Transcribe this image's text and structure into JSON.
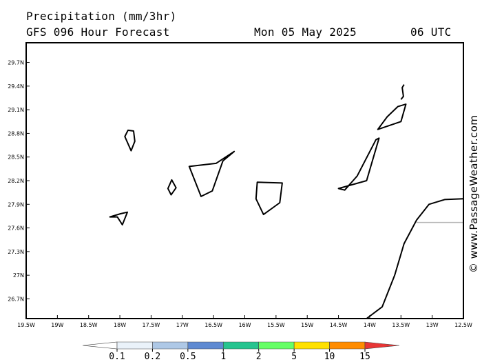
{
  "header": {
    "title": "Precipitation (mm/3hr)",
    "model": "GFS 096 Hour Forecast",
    "date": "Mon 05 May 2025",
    "time": "06 UTC"
  },
  "watermark": "© www.PassageWeather.com",
  "map": {
    "lon_range": [
      -19.5,
      -12.5
    ],
    "lat_range": [
      26.45,
      29.95
    ],
    "lat_ticks": [
      {
        "value": 29.7,
        "label": "29.7N"
      },
      {
        "value": 29.4,
        "label": "29.4N"
      },
      {
        "value": 29.1,
        "label": "29.1N"
      },
      {
        "value": 28.8,
        "label": "28.8N"
      },
      {
        "value": 28.5,
        "label": "28.5N"
      },
      {
        "value": 28.2,
        "label": "28.2N"
      },
      {
        "value": 27.9,
        "label": "27.9N"
      },
      {
        "value": 27.6,
        "label": "27.6N"
      },
      {
        "value": 27.3,
        "label": "27.3N"
      },
      {
        "value": 27.0,
        "label": "27N"
      },
      {
        "value": 26.7,
        "label": "26.7N"
      }
    ],
    "lon_ticks": [
      {
        "value": -19.5,
        "label": "19.5W"
      },
      {
        "value": -19.0,
        "label": "19W"
      },
      {
        "value": -18.5,
        "label": "18.5W"
      },
      {
        "value": -18.0,
        "label": "18W"
      },
      {
        "value": -17.5,
        "label": "17.5W"
      },
      {
        "value": -17.0,
        "label": "17W"
      },
      {
        "value": -16.5,
        "label": "16.5W"
      },
      {
        "value": -16.0,
        "label": "16W"
      },
      {
        "value": -15.5,
        "label": "15.5W"
      },
      {
        "value": -15.0,
        "label": "15W"
      },
      {
        "value": -14.5,
        "label": "14.5W"
      },
      {
        "value": -14.0,
        "label": "14W"
      },
      {
        "value": -13.5,
        "label": "13.5W"
      },
      {
        "value": -13.0,
        "label": "13W"
      },
      {
        "value": -12.5,
        "label": "12.5W"
      }
    ],
    "coastlines": [
      {
        "name": "la-palma",
        "points": [
          [
            -17.87,
            28.84
          ],
          [
            -17.78,
            28.83
          ],
          [
            -17.76,
            28.7
          ],
          [
            -17.82,
            28.58
          ],
          [
            -17.92,
            28.76
          ]
        ]
      },
      {
        "name": "el-hierro",
        "points": [
          [
            -18.16,
            27.74
          ],
          [
            -17.99,
            27.78
          ],
          [
            -17.88,
            27.8
          ],
          [
            -17.96,
            27.64
          ],
          [
            -18.04,
            27.74
          ]
        ]
      },
      {
        "name": "la-gomera",
        "points": [
          [
            -17.23,
            28.1
          ],
          [
            -17.17,
            28.21
          ],
          [
            -17.1,
            28.11
          ],
          [
            -17.18,
            28.02
          ]
        ]
      },
      {
        "name": "tenerife",
        "points": [
          [
            -16.89,
            28.38
          ],
          [
            -16.46,
            28.42
          ],
          [
            -16.17,
            28.57
          ],
          [
            -16.35,
            28.45
          ],
          [
            -16.52,
            28.07
          ],
          [
            -16.7,
            28.0
          ]
        ]
      },
      {
        "name": "gran-canaria",
        "points": [
          [
            -15.8,
            28.18
          ],
          [
            -15.4,
            28.17
          ],
          [
            -15.44,
            27.92
          ],
          [
            -15.7,
            27.77
          ],
          [
            -15.82,
            27.97
          ]
        ]
      },
      {
        "name": "fuerteventura",
        "points": [
          [
            -14.5,
            28.1
          ],
          [
            -14.05,
            28.2
          ],
          [
            -13.85,
            28.74
          ],
          [
            -13.9,
            28.72
          ],
          [
            -14.2,
            28.26
          ],
          [
            -14.4,
            28.08
          ]
        ]
      },
      {
        "name": "lanzarote",
        "points": [
          [
            -13.87,
            28.85
          ],
          [
            -13.72,
            29.01
          ],
          [
            -13.55,
            29.14
          ],
          [
            -13.42,
            29.17
          ],
          [
            -13.5,
            28.95
          ]
        ]
      },
      {
        "name": "graciosa",
        "points": [
          [
            -13.5,
            29.23
          ],
          [
            -13.46,
            29.27
          ],
          [
            -13.48,
            29.38
          ],
          [
            -13.45,
            29.42
          ]
        ]
      },
      {
        "name": "african-coast",
        "points": [
          [
            -14.05,
            26.45
          ],
          [
            -13.8,
            26.6
          ],
          [
            -13.6,
            27.0
          ],
          [
            -13.45,
            27.4
          ],
          [
            -13.25,
            27.7
          ],
          [
            -13.05,
            27.9
          ],
          [
            -12.8,
            27.96
          ],
          [
            -12.5,
            27.97
          ]
        ]
      }
    ],
    "border": {
      "name": "western-sahara-border",
      "points": [
        [
          -13.25,
          27.67
        ],
        [
          -12.5,
          27.67
        ]
      ]
    }
  },
  "legend": {
    "labels": [
      "0.1",
      "0.2",
      "0.5",
      "1",
      "2",
      "5",
      "10",
      "15"
    ],
    "colors": [
      "#ffffff",
      "#eaf2fa",
      "#aec8e6",
      "#5f8ad2",
      "#26c48f",
      "#66ff66",
      "#ffe100",
      "#ff8c00",
      "#e83535"
    ]
  }
}
